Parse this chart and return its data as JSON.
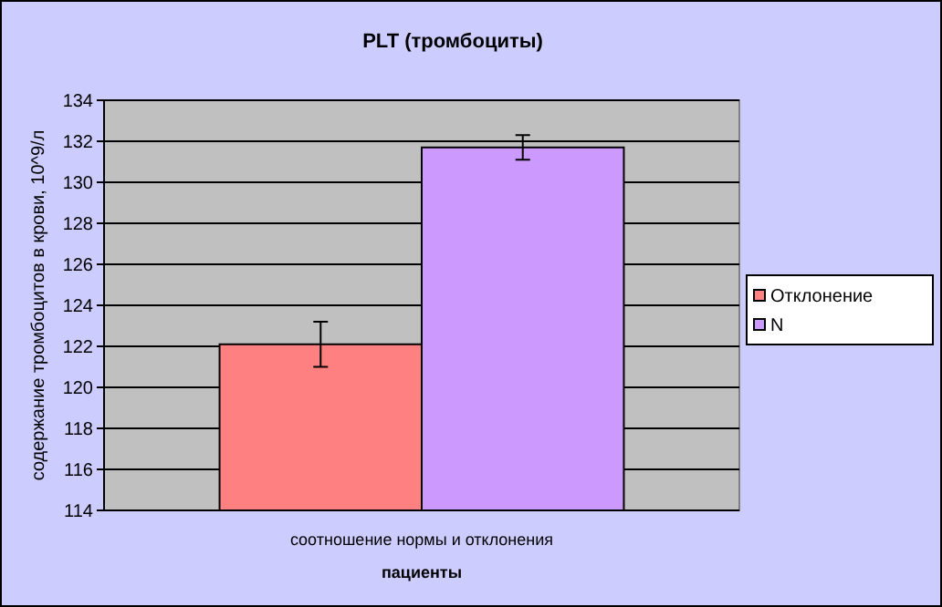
{
  "chart_data": {
    "type": "bar",
    "title": "PLT (тромбоциты)",
    "xlabel": "пациенты",
    "ylabel": "содержание тромбоцитов в крови, 10^9/л",
    "categories": [
      "соотношение нормы и отклонения"
    ],
    "series": [
      {
        "name": "Отклонение",
        "color": "#ff8080",
        "values": [
          122.1
        ],
        "errors": [
          1.1
        ]
      },
      {
        "name": "N",
        "color": "#cc99ff",
        "values": [
          131.7
        ],
        "errors": [
          0.6
        ]
      }
    ],
    "ylim": [
      114,
      134
    ],
    "yticks": [
      114,
      116,
      118,
      120,
      122,
      124,
      126,
      128,
      130,
      132,
      134
    ],
    "grid": "y",
    "legend": "right"
  }
}
